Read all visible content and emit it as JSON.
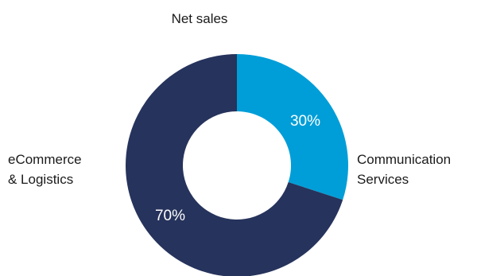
{
  "chart_data": {
    "type": "pie",
    "title": "Net sales",
    "slices": [
      {
        "label_lines": [
          "Communication",
          "Services"
        ],
        "value": 30,
        "value_label": "30%",
        "color": "#009ed8"
      },
      {
        "label_lines": [
          "eCommerce",
          "& Logistics"
        ],
        "value": 70,
        "value_label": "70%",
        "color": "#26335c"
      }
    ],
    "donut": true
  }
}
